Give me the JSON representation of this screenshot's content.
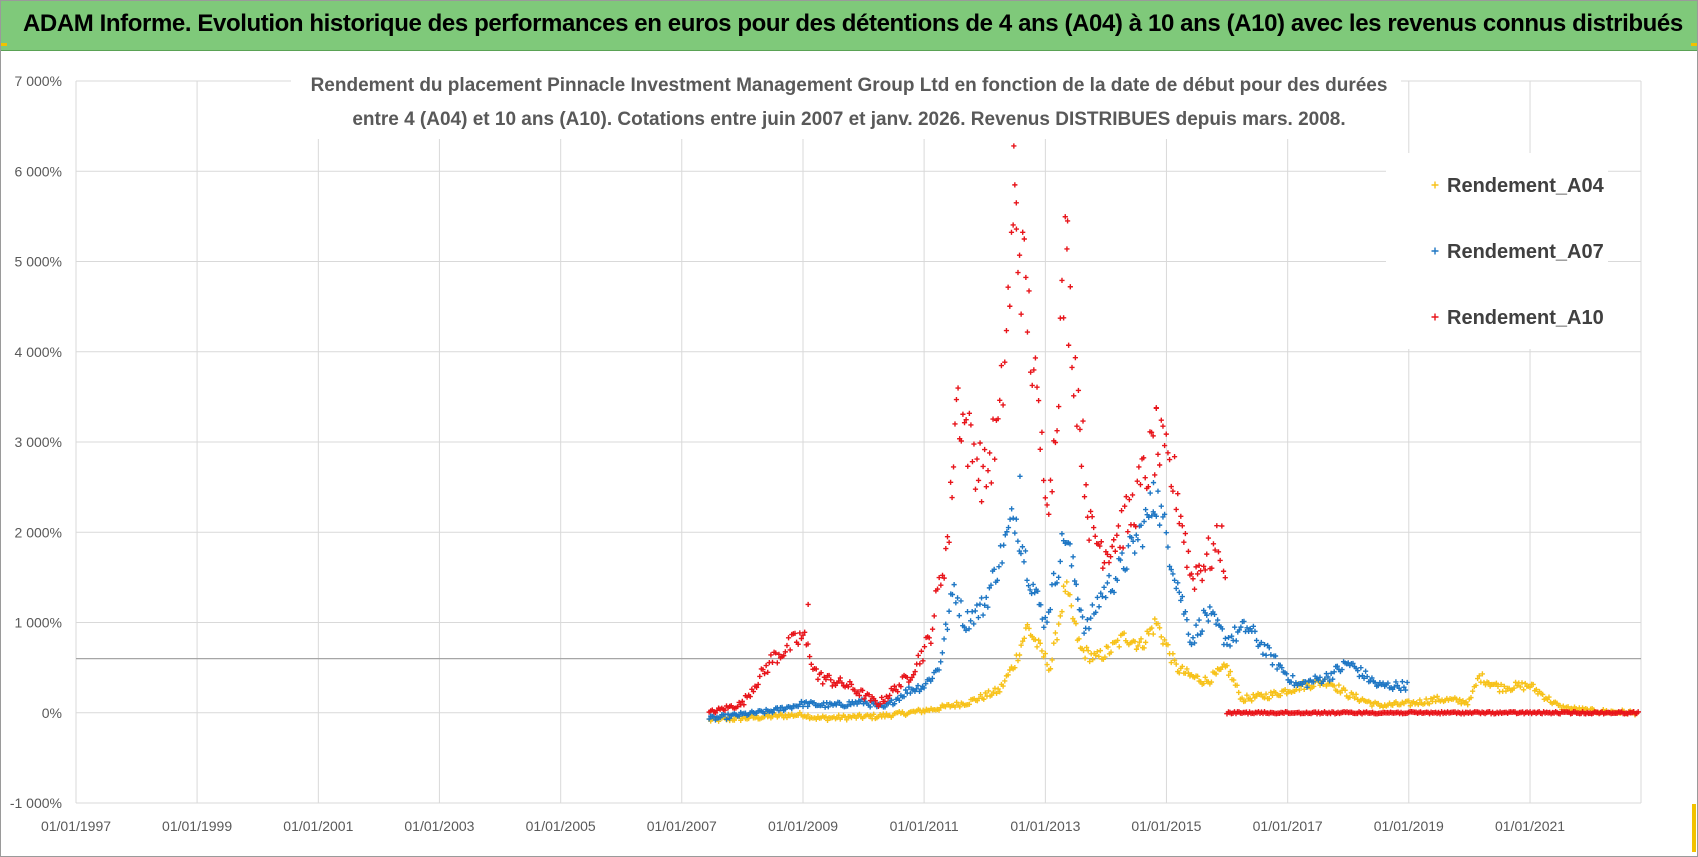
{
  "banner": {
    "text": "ADAM Informe. Evolution historique des performances en euros pour des détentions de 4 ans (A04) à 10 ans (A10) avec les revenus connus distribués"
  },
  "colors": {
    "banner_bg": "#7fc97a",
    "A04": "#f7c21a",
    "A07": "#1f77c4",
    "A10": "#e8151b",
    "gridline": "#d9d9d9",
    "reference_line": "#a6a6a6"
  },
  "chart_data": {
    "type": "scatter",
    "marker": "plus",
    "title_lines": [
      "Rendement du placement Pinnacle Investment Management Group Ltd en fonction de la date de début pour des durées",
      "entre 4 (A04) et 10 ans (A10). Cotations entre juin 2007 et janv. 2026. Revenus DISTRIBUES depuis mars. 2008."
    ],
    "xlabel": "",
    "ylabel": "",
    "xlim": [
      "1997-01-01",
      "2022-11-01"
    ],
    "ylim": [
      -1000,
      7000
    ],
    "x_ticks": [
      "01/01/1997",
      "01/01/1999",
      "01/01/2001",
      "01/01/2003",
      "01/01/2005",
      "01/01/2007",
      "01/01/2009",
      "01/01/2011",
      "01/01/2013",
      "01/01/2015",
      "01/01/2017",
      "01/01/2019",
      "01/01/2021"
    ],
    "y_ticks": [
      "-1 000%",
      "0%",
      "1 000%",
      "2 000%",
      "3 000%",
      "4 000%",
      "5 000%",
      "6 000%",
      "7 000%"
    ],
    "y_tick_values": [
      -1000,
      0,
      1000,
      2000,
      3000,
      4000,
      5000,
      6000,
      7000
    ],
    "grid": "both",
    "reference_line_y": 600,
    "legend_position": "top-right",
    "series": [
      {
        "name": "Rendement_A04",
        "color": "#f7c21a",
        "points": [
          [
            "2007-06-15",
            -80
          ],
          [
            "2008-01-01",
            -60
          ],
          [
            "2008-07-01",
            -40
          ],
          [
            "2009-01-01",
            -20
          ],
          [
            "2009-04-01",
            -60
          ],
          [
            "2009-10-01",
            -50
          ],
          [
            "2010-04-01",
            -40
          ],
          [
            "2010-10-01",
            0
          ],
          [
            "2011-04-01",
            50
          ],
          [
            "2011-10-01",
            120
          ],
          [
            "2012-04-01",
            250
          ],
          [
            "2012-07-01",
            550
          ],
          [
            "2012-09-15",
            950
          ],
          [
            "2012-12-01",
            700
          ],
          [
            "2013-02-01",
            500
          ],
          [
            "2013-05-01",
            1400
          ],
          [
            "2013-08-01",
            700
          ],
          [
            "2013-11-01",
            600
          ],
          [
            "2014-02-01",
            700
          ],
          [
            "2014-05-01",
            850
          ],
          [
            "2014-08-01",
            750
          ],
          [
            "2014-11-01",
            1000
          ],
          [
            "2015-03-01",
            500
          ],
          [
            "2015-06-01",
            400
          ],
          [
            "2015-09-01",
            350
          ],
          [
            "2016-01-01",
            500
          ],
          [
            "2016-04-01",
            150
          ],
          [
            "2016-10-01",
            200
          ],
          [
            "2017-04-01",
            300
          ],
          [
            "2017-09-01",
            350
          ],
          [
            "2018-01-01",
            200
          ],
          [
            "2018-07-01",
            80
          ],
          [
            "2019-01-01",
            100
          ],
          [
            "2019-07-01",
            150
          ],
          [
            "2020-01-01",
            120
          ],
          [
            "2020-03-01",
            400
          ],
          [
            "2020-07-01",
            280
          ],
          [
            "2021-01-01",
            300
          ],
          [
            "2021-07-01",
            60
          ],
          [
            "2022-01-01",
            20
          ],
          [
            "2022-10-15",
            0
          ]
        ]
      },
      {
        "name": "Rendement_A07",
        "color": "#1f77c4",
        "points": [
          [
            "2007-06-15",
            -70
          ],
          [
            "2008-01-01",
            -20
          ],
          [
            "2008-07-01",
            20
          ],
          [
            "2009-01-01",
            100
          ],
          [
            "2009-07-01",
            80
          ],
          [
            "2010-01-01",
            120
          ],
          [
            "2010-05-01",
            50
          ],
          [
            "2010-10-01",
            250
          ],
          [
            "2011-01-01",
            300
          ],
          [
            "2011-04-01",
            500
          ],
          [
            "2011-07-01",
            1400
          ],
          [
            "2011-09-01",
            1000
          ],
          [
            "2012-01-01",
            1200
          ],
          [
            "2012-07-01",
            2200
          ],
          [
            "2012-10-01",
            1500
          ],
          [
            "2013-01-01",
            1000
          ],
          [
            "2013-05-01",
            2000
          ],
          [
            "2013-09-01",
            900
          ],
          [
            "2013-12-01",
            1300
          ],
          [
            "2014-03-01",
            1500
          ],
          [
            "2014-08-01",
            2000
          ],
          [
            "2014-11-01",
            2400
          ],
          [
            "2015-03-01",
            1500
          ],
          [
            "2015-06-01",
            800
          ],
          [
            "2015-09-01",
            1100
          ],
          [
            "2016-01-01",
            800
          ],
          [
            "2016-05-01",
            950
          ],
          [
            "2016-10-01",
            600
          ],
          [
            "2017-03-01",
            300
          ],
          [
            "2017-09-01",
            400
          ],
          [
            "2018-01-01",
            550
          ],
          [
            "2018-07-01",
            300
          ],
          [
            "2019-01-01",
            300
          ]
        ]
      },
      {
        "name": "Rendement_A10",
        "color": "#e8151b",
        "points": [
          [
            "2007-06-15",
            0
          ],
          [
            "2008-01-01",
            100
          ],
          [
            "2008-07-01",
            600
          ],
          [
            "2009-01-01",
            850
          ],
          [
            "2009-04-01",
            400
          ],
          [
            "2009-10-01",
            300
          ],
          [
            "2010-04-01",
            100
          ],
          [
            "2010-10-01",
            400
          ],
          [
            "2011-02-01",
            800
          ],
          [
            "2011-06-01",
            2000
          ],
          [
            "2011-07-15",
            3500
          ],
          [
            "2011-10-01",
            3000
          ],
          [
            "2012-01-01",
            2600
          ],
          [
            "2012-04-01",
            3200
          ],
          [
            "2012-07-01",
            5500
          ],
          [
            "2012-09-15",
            4500
          ],
          [
            "2012-12-01",
            3000
          ],
          [
            "2013-02-01",
            2400
          ],
          [
            "2013-05-01",
            5000
          ],
          [
            "2013-07-01",
            3800
          ],
          [
            "2013-10-01",
            2000
          ],
          [
            "2014-01-01",
            1800
          ],
          [
            "2014-06-01",
            2200
          ],
          [
            "2014-11-01",
            3000
          ],
          [
            "2015-03-01",
            2500
          ],
          [
            "2015-06-01",
            1500
          ],
          [
            "2015-09-01",
            1700
          ],
          [
            "2015-12-01",
            1900
          ],
          [
            "2016-01-01",
            1500
          ]
        ]
      }
    ]
  }
}
